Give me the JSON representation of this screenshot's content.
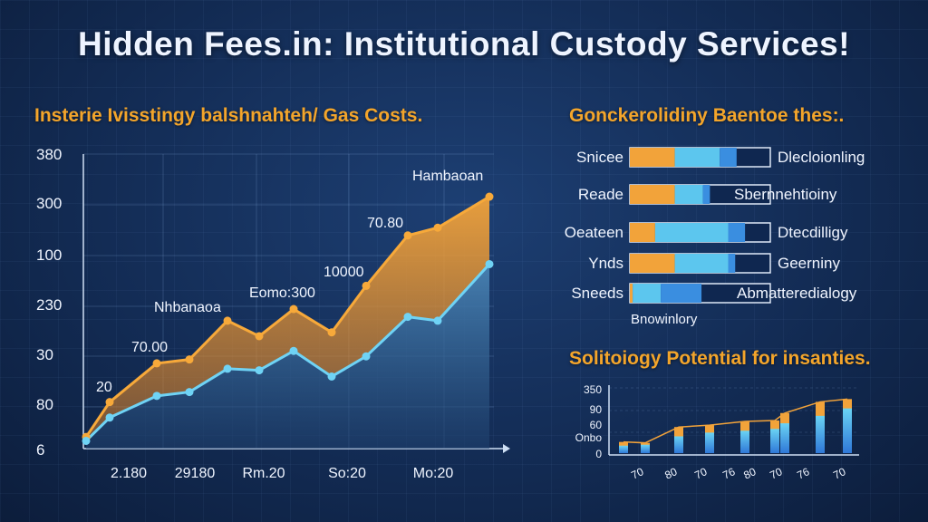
{
  "title": "Hidden Fees.in: Institutional Custody Services!",
  "left_chart": {
    "subtitle": "Insterie Ivisstingy balshnahteh/ Gas Costs.",
    "y_ticks": [
      "380",
      "300",
      "100",
      "230",
      "30",
      "80",
      "6"
    ],
    "x_ticks": [
      "2.180",
      "29180",
      "Rm.20",
      "So:20",
      "Mo:20"
    ],
    "annotations": [
      "20",
      "70.00",
      "Nhbanaoa",
      "Eomo:300",
      "10000",
      "70.80",
      "Hambaoan"
    ],
    "series_colors": {
      "orange": "#f2a33a",
      "blue": "#5cc6ee"
    }
  },
  "right_chart": {
    "subtitle": "Gonckerolidiny Baentoe thes:.",
    "bars": [
      {
        "left": "Snicee",
        "right": "Dlecloionling",
        "segments": [
          0.32,
          0.32,
          0.12
        ]
      },
      {
        "left": "Reade",
        "right": "Sbernnehtioiny",
        "segments": [
          0.32,
          0.2,
          0.05
        ]
      },
      {
        "left": "Oeateen",
        "right": "Dtecdilligy",
        "segments": [
          0.18,
          0.52,
          0.12
        ]
      },
      {
        "left": "Ynds",
        "right": "Geerniny",
        "segments": [
          0.32,
          0.38,
          0.05
        ]
      },
      {
        "left": "Sneeds",
        "right": "Abmatteredialogy",
        "segments": [
          0.02,
          0.2,
          0.29
        ]
      }
    ],
    "footnote": "Bnowinlory",
    "segment_colors": [
      "#f2a33a",
      "#5cc6ee",
      "#3a8ee0"
    ]
  },
  "bottom_chart": {
    "subtitle": "Solitoiogy Potential for insanties.",
    "y_ticks": [
      "350",
      "90",
      "60",
      "Onbo",
      "0"
    ],
    "x_ticks": [
      "70",
      "80",
      "70",
      "76",
      "80",
      "70",
      "76",
      "70"
    ]
  },
  "chart_data": [
    {
      "type": "area",
      "title": "Insterie Ivisstingy balshnahteh/ Gas Costs.",
      "ylim": [
        0,
        380
      ],
      "x_tick_labels": [
        "2.180",
        "29180",
        "Rm.20",
        "So:20",
        "Mo:20"
      ],
      "series": [
        {
          "values": [
            15,
            60,
            110,
            115,
            165,
            145,
            180,
            150,
            210,
            275,
            285,
            325
          ]
        },
        {
          "values": [
            10,
            40,
            68,
            73,
            103,
            101,
            126,
            93,
            119,
            170,
            165,
            238
          ]
        }
      ]
    },
    {
      "type": "bar",
      "title": "Gonckerolidiny Baentoe thes:.",
      "categories": [
        "Snicee",
        "Reade",
        "Oeateen",
        "Ynds",
        "Sneeds"
      ],
      "series": [
        {
          "values": [
            0.32,
            0.32,
            0.18,
            0.32,
            0.02
          ]
        },
        {
          "values": [
            0.32,
            0.2,
            0.52,
            0.38,
            0.2
          ]
        },
        {
          "values": [
            0.12,
            0.05,
            0.12,
            0.05,
            0.29
          ]
        }
      ]
    },
    {
      "type": "bar",
      "title": "Solitoiogy Potential for insanties.",
      "ylim": [
        0,
        350
      ],
      "series": [
        {
          "values": [
            60,
            55,
            140,
            150,
            170,
            175,
            215,
            275,
            290
          ]
        },
        {
          "values": [
            40,
            45,
            90,
            110,
            120,
            130,
            160,
            200,
            240
          ]
        }
      ]
    }
  ]
}
